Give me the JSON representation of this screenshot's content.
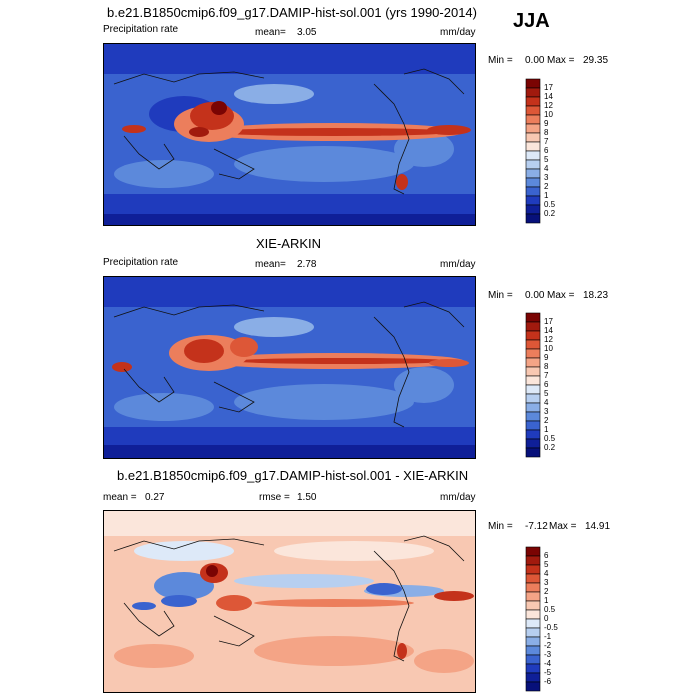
{
  "season": "JJA",
  "panels": [
    {
      "id": "model",
      "title": "b.e21.B1850cmip6.f09_g17.DAMIP-hist-sol.001 (yrs 1990-2014)",
      "left_label": "Precipitation rate",
      "mean_label": "mean=",
      "mean_value": "3.05",
      "units": "mm/day",
      "min_label": "Min =",
      "min_value": "0.00",
      "max_label": "Max =",
      "max_value": "29.35",
      "style": "abs"
    },
    {
      "id": "obs",
      "title": "XIE-ARKIN",
      "left_label": "Precipitation rate",
      "mean_label": "mean=",
      "mean_value": "2.78",
      "units": "mm/day",
      "min_label": "Min =",
      "min_value": "0.00",
      "max_label": "Max =",
      "max_value": "18.23",
      "style": "abs"
    },
    {
      "id": "diff",
      "title": "b.e21.B1850cmip6.f09_g17.DAMIP-hist-sol.001 - XIE-ARKIN",
      "left_label": "mean =",
      "mean_label": "rmse =",
      "mean_value": "1.50",
      "left_value": "0.27",
      "units": "mm/day",
      "min_label": "Min =",
      "min_value": "-7.12",
      "max_label": "Max =",
      "max_value": "14.91",
      "style": "diff"
    }
  ],
  "colorbars": {
    "abs": {
      "levels": [
        "17",
        "14",
        "12",
        "10",
        "9",
        "8",
        "7",
        "6",
        "5",
        "4",
        "3",
        "2",
        "1",
        "0.5",
        "0.2"
      ],
      "colors": [
        "#7a0403",
        "#a11a0e",
        "#c4321b",
        "#dd5737",
        "#ec7e5c",
        "#f4a486",
        "#f8c8b2",
        "#fbe6db",
        "#dde9f8",
        "#b7cff0",
        "#8aaee6",
        "#5c89db",
        "#3a63cf",
        "#1f3bbd",
        "#0f1f98",
        "#07107a"
      ]
    },
    "diff": {
      "levels": [
        "6",
        "5",
        "4",
        "3",
        "2",
        "1",
        "0.5",
        "0",
        "-0.5",
        "-1",
        "-2",
        "-3",
        "-4",
        "-5",
        "-6"
      ],
      "colors": [
        "#7a0403",
        "#a11a0e",
        "#c4321b",
        "#dd5737",
        "#ec7e5c",
        "#f4a486",
        "#f8c8b2",
        "#fbe6db",
        "#dde9f8",
        "#b7cff0",
        "#8aaee6",
        "#5c89db",
        "#3a63cf",
        "#1f3bbd",
        "#0f1f98",
        "#07107a"
      ]
    }
  },
  "chart_data": [
    {
      "type": "heatmap",
      "title": "b.e21.B1850cmip6.f09_g17.DAMIP-hist-sol.001 (yrs 1990-2014)",
      "variable": "Precipitation rate",
      "units": "mm/day",
      "mean": 3.05,
      "min": 0.0,
      "max": 29.35,
      "contour_levels": [
        0.2,
        0.5,
        1,
        2,
        3,
        4,
        5,
        6,
        7,
        8,
        9,
        10,
        12,
        14,
        17
      ]
    },
    {
      "type": "heatmap",
      "title": "XIE-ARKIN",
      "variable": "Precipitation rate",
      "units": "mm/day",
      "mean": 2.78,
      "min": 0.0,
      "max": 18.23,
      "contour_levels": [
        0.2,
        0.5,
        1,
        2,
        3,
        4,
        5,
        6,
        7,
        8,
        9,
        10,
        12,
        14,
        17
      ]
    },
    {
      "type": "heatmap",
      "title": "b.e21.B1850cmip6.f09_g17.DAMIP-hist-sol.001 - XIE-ARKIN",
      "units": "mm/day",
      "mean": 0.27,
      "rmse": 1.5,
      "min": -7.12,
      "max": 14.91,
      "contour_levels": [
        -6,
        -5,
        -4,
        -3,
        -2,
        -1,
        -0.5,
        0,
        0.5,
        1,
        2,
        3,
        4,
        5,
        6
      ]
    }
  ]
}
